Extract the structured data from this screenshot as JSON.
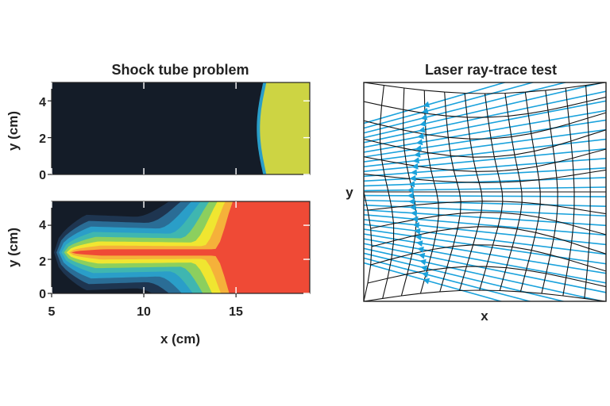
{
  "chart_data": [
    {
      "type": "heatmap",
      "title": "Shock tube problem",
      "subplots": [
        {
          "name": "top",
          "ylabel": "y (cm)",
          "ylim": [
            0,
            5
          ],
          "yticks": [
            "0",
            "2",
            "4"
          ],
          "shock_front_x_cm": 16.3,
          "colors": {
            "background": "#141c28",
            "post_shock": "#cdd443",
            "front_edge": "#2a9ec8"
          }
        },
        {
          "name": "bottom",
          "ylabel": "y (cm)",
          "ylim": [
            0,
            5.4
          ],
          "yticks": [
            "0",
            "2",
            "4"
          ],
          "xlabel": "x (cm)",
          "xlim": [
            5,
            19
          ],
          "xticks": [
            "5",
            "10",
            "15"
          ],
          "jet_axis_y_cm": 2.4,
          "colors": [
            "#141c28",
            "#1e3550",
            "#2a6d96",
            "#2a9ec8",
            "#3fb6b0",
            "#8ccf5e",
            "#f0e630",
            "#f5b13a",
            "#ef4a36"
          ]
        }
      ]
    },
    {
      "type": "diagram",
      "title": "Laser ray-trace test",
      "xlabel": "x",
      "ylabel": "y",
      "grid": "distorted mesh",
      "ray_color": "#1aa2dc",
      "mesh_color": "#111111"
    }
  ]
}
